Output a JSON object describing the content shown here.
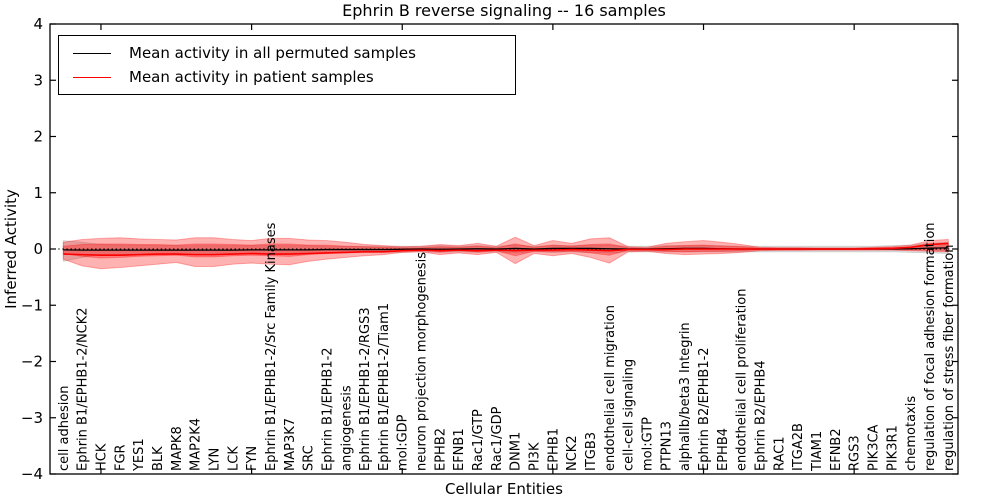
{
  "figure_kind": "matplotlib-line-chart",
  "accent_colors": {
    "patient_red": "#ff0000",
    "permuted_black": "#000000",
    "band_red_fill": "rgba(255,0,0,0.30)",
    "band_gray_fill": "rgba(110,110,110,0.22)"
  },
  "chart_data": {
    "type": "line",
    "title": "Ephrin B reverse signaling -- 16 samples",
    "xlabel": "Cellular Entities",
    "ylabel": "Inferred Activity",
    "ylim": [
      -4,
      4
    ],
    "yticks": [
      4,
      3,
      2,
      1,
      0,
      -1,
      -2,
      -3,
      -4
    ],
    "xtick_positions": [
      2,
      10,
      18,
      26,
      34,
      42
    ],
    "grid": false,
    "legend_position": "upper left",
    "zero_reference_line": 0,
    "categories": [
      "cell adhesion",
      "Ephrin B1/EPHB1-2/NCK2",
      "HCK",
      "FGR",
      "YES1",
      "BLK",
      "MAPK8",
      "MAP2K4",
      "LYN",
      "LCK",
      "FYN",
      "Ephrin B1/EPHB1-2/Src Family Kinases",
      "MAP3K7",
      "SRC",
      "Ephrin B1/EPHB1-2",
      "angiogenesis",
      "Ephrin B1/EPHB1-2/RGS3",
      "Ephrin B1/EPHB1-2/Tiam1",
      "mol:GDP",
      "neuron projection morphogenesis",
      "EPHB2",
      "EFNB1",
      "Rac1/GTP",
      "Rac1/GDP",
      "DNM1",
      "PI3K",
      "EPHB1",
      "NCK2",
      "ITGB3",
      "endothelial cell migration",
      "cell-cell signaling",
      "mol:GTP",
      "PTPN13",
      "alphaIIb/beta3 Integrin",
      "Ephrin B2/EPHB1-2",
      "EPHB4",
      "endothelial cell proliferation",
      "Ephrin B2/EPHB4",
      "RAC1",
      "ITGA2B",
      "TIAM1",
      "EFNB2",
      "RGS3",
      "PIK3CA",
      "PIK3R1",
      "chemotaxis",
      "regulation of focal adhesion formation",
      "regulation of stress fiber formation"
    ],
    "series": [
      {
        "name": "Mean activity in all permuted samples",
        "color": "#000000",
        "width": 1.3,
        "values": [
          -0.015,
          -0.02,
          -0.02,
          -0.02,
          -0.02,
          -0.02,
          -0.02,
          -0.02,
          -0.02,
          -0.02,
          -0.015,
          -0.015,
          -0.015,
          -0.015,
          -0.01,
          -0.01,
          -0.01,
          -0.01,
          -0.005,
          0,
          -0.005,
          0,
          0.005,
          0,
          0.01,
          0,
          0.01,
          0.01,
          0.01,
          0.005,
          0,
          0,
          0.005,
          0.01,
          0.01,
          0.005,
          0,
          0,
          0,
          0,
          0,
          0,
          0,
          0,
          0,
          0.005,
          0.015,
          0.02
        ]
      },
      {
        "name": "Mean activity in patient samples",
        "color": "#ff0000",
        "width": 1.6,
        "values": [
          -0.09,
          -0.1,
          -0.11,
          -0.11,
          -0.1,
          -0.09,
          -0.09,
          -0.1,
          -0.1,
          -0.09,
          -0.08,
          -0.09,
          -0.09,
          -0.08,
          -0.07,
          -0.06,
          -0.05,
          -0.05,
          -0.03,
          -0.02,
          -0.03,
          -0.02,
          -0.03,
          -0.02,
          -0.03,
          -0.02,
          -0.02,
          -0.01,
          -0.02,
          -0.03,
          -0.01,
          -0.01,
          -0.01,
          0,
          0,
          0,
          0,
          0,
          0,
          0,
          0,
          0,
          0,
          0.005,
          0.01,
          0.03,
          0.08,
          0.1
        ]
      }
    ],
    "bands": [
      {
        "name": "permuted-sample-range",
        "color": "rgba(110,110,110,0.22)",
        "upper": [
          0.15,
          0.12,
          0.08,
          0.07,
          0.07,
          0.06,
          0.06,
          0.06,
          0.06,
          0.06,
          0.06,
          0.06,
          0.06,
          0.06,
          0.05,
          0.05,
          0.05,
          0.05,
          0.05,
          0.05,
          0.06,
          0.05,
          0.06,
          0.05,
          0.07,
          0.05,
          0.06,
          0.06,
          0.07,
          0.07,
          0.05,
          0.05,
          0.06,
          0.06,
          0.06,
          0.06,
          0.05,
          0.05,
          0.05,
          0.05,
          0.05,
          0.05,
          0.05,
          0.05,
          0.06,
          0.07,
          0.1,
          0.12
        ],
        "lower": [
          -0.22,
          -0.15,
          -0.1,
          -0.1,
          -0.09,
          -0.09,
          -0.08,
          -0.09,
          -0.09,
          -0.08,
          -0.08,
          -0.08,
          -0.08,
          -0.07,
          -0.07,
          -0.07,
          -0.06,
          -0.06,
          -0.06,
          -0.05,
          -0.06,
          -0.05,
          -0.06,
          -0.05,
          -0.07,
          -0.05,
          -0.06,
          -0.05,
          -0.06,
          -0.07,
          -0.05,
          -0.05,
          -0.05,
          -0.05,
          -0.05,
          -0.05,
          -0.05,
          -0.05,
          -0.05,
          -0.05,
          -0.05,
          -0.05,
          -0.05,
          -0.05,
          -0.05,
          -0.06,
          -0.07,
          -0.08
        ]
      },
      {
        "name": "patient-range-outer",
        "color": "rgba(255,0,0,0.30)",
        "upper": [
          0.12,
          0.17,
          0.19,
          0.2,
          0.18,
          0.17,
          0.16,
          0.2,
          0.2,
          0.17,
          0.15,
          0.19,
          0.19,
          0.16,
          0.15,
          0.12,
          0.08,
          0.06,
          0.04,
          0.05,
          0.08,
          0.06,
          0.1,
          0.05,
          0.21,
          0.06,
          0.15,
          0.1,
          0.18,
          0.2,
          0.04,
          0.03,
          0.1,
          0.13,
          0.15,
          0.12,
          0.08,
          0.03,
          0.025,
          0.025,
          0.02,
          0.02,
          0.02,
          0.03,
          0.04,
          0.07,
          0.15,
          0.17
        ],
        "lower": [
          -0.18,
          -0.3,
          -0.35,
          -0.33,
          -0.3,
          -0.27,
          -0.24,
          -0.31,
          -0.31,
          -0.27,
          -0.25,
          -0.27,
          -0.28,
          -0.22,
          -0.18,
          -0.15,
          -0.12,
          -0.1,
          -0.06,
          -0.05,
          -0.1,
          -0.07,
          -0.1,
          -0.06,
          -0.26,
          -0.08,
          -0.12,
          -0.08,
          -0.15,
          -0.25,
          -0.05,
          -0.04,
          -0.08,
          -0.1,
          -0.09,
          -0.08,
          -0.06,
          -0.03,
          -0.025,
          -0.025,
          -0.02,
          -0.02,
          -0.02,
          -0.02,
          -0.02,
          -0.03,
          -0.04,
          -0.05
        ]
      },
      {
        "name": "patient-range-inner",
        "color": "rgba(255,0,0,0.30)",
        "upper": [
          0.05,
          0.08,
          0.09,
          0.09,
          0.08,
          0.08,
          0.07,
          0.09,
          0.09,
          0.08,
          0.07,
          0.09,
          0.09,
          0.07,
          0.07,
          0.05,
          0.04,
          0.03,
          0.02,
          0.02,
          0.04,
          0.03,
          0.05,
          0.02,
          0.09,
          0.03,
          0.07,
          0.05,
          0.08,
          0.09,
          0.02,
          0.01,
          0.05,
          0.06,
          0.07,
          0.05,
          0.04,
          0.015,
          0.01,
          0.01,
          0.01,
          0.01,
          0.01,
          0.015,
          0.02,
          0.03,
          0.08,
          0.09
        ],
        "lower": [
          -0.08,
          -0.13,
          -0.16,
          -0.15,
          -0.13,
          -0.12,
          -0.11,
          -0.14,
          -0.14,
          -0.12,
          -0.11,
          -0.12,
          -0.13,
          -0.1,
          -0.08,
          -0.07,
          -0.05,
          -0.05,
          -0.03,
          -0.02,
          -0.05,
          -0.03,
          -0.05,
          -0.03,
          -0.12,
          -0.04,
          -0.05,
          -0.04,
          -0.07,
          -0.11,
          -0.02,
          -0.02,
          -0.04,
          -0.05,
          -0.04,
          -0.04,
          -0.03,
          -0.015,
          -0.01,
          -0.01,
          -0.01,
          -0.01,
          -0.01,
          -0.01,
          -0.01,
          -0.015,
          -0.02,
          -0.025
        ]
      }
    ]
  }
}
